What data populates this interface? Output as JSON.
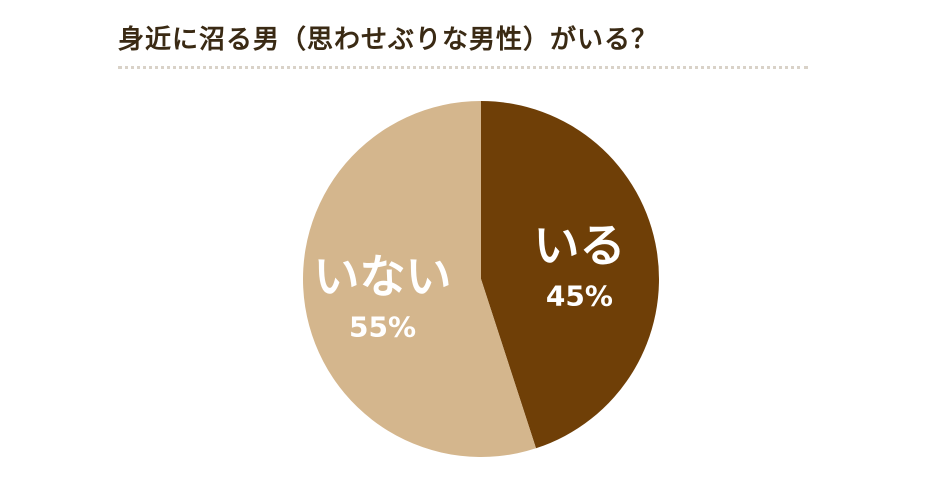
{
  "title": "身近に沼る男（思わせぶりな男性）がいる？",
  "colors": {
    "background": "#ffffff",
    "title_text": "#3a2a14",
    "divider": "#d9d2c8",
    "label_text": "#ffffff"
  },
  "chart_data": {
    "type": "pie",
    "title": "身近に沼る男（思わせぶりな男性）がいる？",
    "slices": [
      {
        "label": "いる",
        "value": 45,
        "value_label": "45%",
        "color": "#6f3f07"
      },
      {
        "label": "いない",
        "value": 55,
        "value_label": "55%",
        "color": "#d4b68d"
      }
    ],
    "start": "12 o'clock",
    "direction": "clockwise",
    "legend": "none"
  }
}
